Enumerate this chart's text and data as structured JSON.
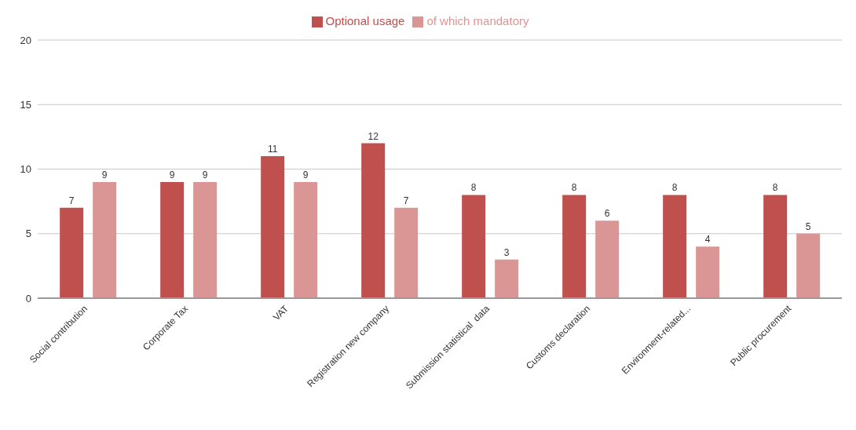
{
  "chart_data": {
    "type": "bar",
    "categories": [
      "Social contribution",
      "Corporate Tax",
      "VAT",
      "Registration new company",
      "Submission statistical  data",
      "Customs declaration",
      "Environment-related...",
      "Public procurement"
    ],
    "series": [
      {
        "name": "Optional usage",
        "color": "#c0504d",
        "values": [
          7,
          9,
          11,
          12,
          8,
          8,
          8,
          8
        ]
      },
      {
        "name": "of which mandatory",
        "color": "#d99694",
        "values": [
          9,
          9,
          9,
          7,
          3,
          6,
          4,
          5
        ]
      }
    ],
    "ylim": [
      0,
      20
    ],
    "yticks": [
      0,
      5,
      10,
      15,
      20
    ],
    "grid": "y",
    "legend": "top",
    "data_labels": true
  }
}
